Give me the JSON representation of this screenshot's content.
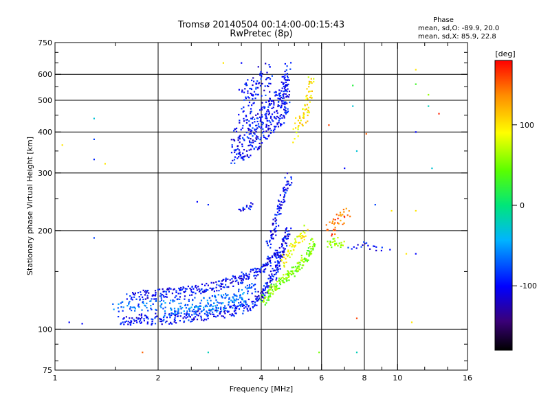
{
  "chart_data": {
    "type": "scatter",
    "title": "Tromsø 20140504 00:14:00-00:15:43",
    "subtitle": "RwPretec (8p)",
    "xlabel": "Frequency [MHz]",
    "ylabel": "Stationary phase Virtual Height [km]",
    "x_scale": "log",
    "y_scale": "log",
    "xlim": [
      1,
      16
    ],
    "ylim": [
      75,
      750
    ],
    "x_ticks": [
      "1",
      "2",
      "4",
      "6",
      "8",
      "10",
      "16"
    ],
    "x_tick_values": [
      1,
      2,
      4,
      6,
      8,
      10,
      16
    ],
    "y_ticks": [
      "75",
      "100",
      "200",
      "300",
      "400",
      "500",
      "600",
      "750"
    ],
    "y_tick_values": [
      75,
      100,
      200,
      300,
      400,
      500,
      600,
      750
    ],
    "grid_x": [
      2,
      4,
      6,
      8,
      10
    ],
    "grid_y": [
      100,
      200,
      300,
      400,
      500,
      600
    ],
    "grid": true,
    "stats": {
      "heading": "Phase",
      "line_o": "mean, sd,O: -89.9, 20.0",
      "line_x": "mean, sd,X:  85.9, 22.8"
    },
    "colorbar": {
      "label": "[deg]",
      "range": [
        -180,
        180
      ],
      "ticks": [
        "100",
        "0",
        "-100"
      ],
      "tick_values": [
        100,
        0,
        -100
      ]
    },
    "traces": [
      {
        "phase": -100,
        "spread_h": 0.04,
        "density": 3,
        "points": [
          [
            1.55,
            106
          ],
          [
            1.8,
            107
          ],
          [
            2.2,
            108
          ],
          [
            2.8,
            111
          ],
          [
            3.3,
            114
          ],
          [
            3.8,
            120
          ],
          [
            4.1,
            130
          ],
          [
            4.4,
            150
          ],
          [
            4.6,
            175
          ],
          [
            4.8,
            200
          ]
        ]
      },
      {
        "phase": -100,
        "spread_h": 0.035,
        "density": 3,
        "points": [
          [
            1.65,
            127
          ],
          [
            2.0,
            128
          ],
          [
            2.5,
            131
          ],
          [
            3.0,
            136
          ],
          [
            3.5,
            143
          ],
          [
            3.9,
            150
          ],
          [
            4.2,
            160
          ],
          [
            4.5,
            175
          ]
        ]
      },
      {
        "phase": -70,
        "spread_h": 0.035,
        "density": 2,
        "points": [
          [
            1.5,
            117
          ],
          [
            1.9,
            118
          ],
          [
            2.4,
            120
          ],
          [
            2.9,
            122
          ],
          [
            3.4,
            127
          ],
          [
            3.9,
            135
          ]
        ]
      },
      {
        "phase": -60,
        "spread_h": 0.03,
        "density": 2,
        "points": [
          [
            2.1,
            112
          ],
          [
            2.6,
            114
          ],
          [
            3.1,
            117
          ],
          [
            3.6,
            122
          ]
        ]
      },
      {
        "phase": -100,
        "spread_h": 0.04,
        "density": 2,
        "points": [
          [
            4.2,
            180
          ],
          [
            4.4,
            210
          ],
          [
            4.55,
            240
          ],
          [
            4.7,
            270
          ],
          [
            4.85,
            290
          ]
        ]
      },
      {
        "phase": 50,
        "spread_h": 0.03,
        "density": 3,
        "points": [
          [
            4.05,
            122
          ],
          [
            4.3,
            132
          ],
          [
            4.6,
            140
          ],
          [
            4.9,
            148
          ],
          [
            5.2,
            158
          ],
          [
            5.5,
            170
          ],
          [
            5.7,
            185
          ]
        ]
      },
      {
        "phase": 90,
        "spread_h": 0.035,
        "density": 2,
        "points": [
          [
            4.6,
            160
          ],
          [
            4.9,
            175
          ],
          [
            5.2,
            190
          ],
          [
            5.4,
            205
          ]
        ]
      },
      {
        "phase": -100,
        "spread_h": 0.14,
        "density": 6,
        "points": [
          [
            3.3,
            360
          ],
          [
            3.6,
            380
          ],
          [
            3.9,
            410
          ],
          [
            4.2,
            440
          ],
          [
            4.5,
            470
          ],
          [
            4.7,
            520
          ],
          [
            4.8,
            580
          ]
        ]
      },
      {
        "phase": -100,
        "spread_h": 0.12,
        "density": 3,
        "points": [
          [
            3.5,
            480
          ],
          [
            3.7,
            520
          ],
          [
            3.9,
            560
          ],
          [
            4.3,
            600
          ]
        ]
      },
      {
        "phase": 100,
        "spread_h": 0.08,
        "density": 2,
        "points": [
          [
            5.0,
            400
          ],
          [
            5.3,
            440
          ],
          [
            5.5,
            500
          ],
          [
            5.6,
            570
          ]
        ]
      },
      {
        "phase": -100,
        "spread_h": 0.02,
        "density": 2,
        "points": [
          [
            3.5,
            232
          ],
          [
            3.8,
            240
          ]
        ]
      },
      {
        "phase": 60,
        "spread_h": 0.03,
        "density": 2,
        "points": [
          [
            6.2,
            180
          ],
          [
            6.6,
            185
          ],
          [
            7.0,
            180
          ]
        ]
      },
      {
        "phase": -100,
        "spread_h": 0.03,
        "density": 1,
        "points": [
          [
            7.3,
            178
          ],
          [
            8.2,
            180
          ],
          [
            9.0,
            178
          ]
        ]
      },
      {
        "phase": 150,
        "spread_h": 0.05,
        "density": 2,
        "points": [
          [
            6.3,
            200
          ],
          [
            6.8,
            215
          ],
          [
            7.2,
            225
          ]
        ]
      }
    ],
    "points": [
      {
        "f": 1.1,
        "h": 105,
        "phase": -100
      },
      {
        "f": 1.2,
        "h": 104,
        "phase": -100
      },
      {
        "f": 1.05,
        "h": 365,
        "phase": 100
      },
      {
        "f": 1.3,
        "h": 440,
        "phase": -30
      },
      {
        "f": 1.3,
        "h": 380,
        "phase": -80
      },
      {
        "f": 1.3,
        "h": 330,
        "phase": -90
      },
      {
        "f": 1.4,
        "h": 320,
        "phase": 100
      },
      {
        "f": 1.3,
        "h": 190,
        "phase": -80
      },
      {
        "f": 1.8,
        "h": 85,
        "phase": 150
      },
      {
        "f": 2.8,
        "h": 85,
        "phase": -20
      },
      {
        "f": 5.9,
        "h": 85,
        "phase": 50
      },
      {
        "f": 7.6,
        "h": 85,
        "phase": -20
      },
      {
        "f": 7.6,
        "h": 108,
        "phase": 160
      },
      {
        "f": 11.0,
        "h": 105,
        "phase": 100
      },
      {
        "f": 2.8,
        "h": 240,
        "phase": -90
      },
      {
        "f": 2.6,
        "h": 245,
        "phase": -100
      },
      {
        "f": 3.1,
        "h": 650,
        "phase": 100
      },
      {
        "f": 3.5,
        "h": 650,
        "phase": -100
      },
      {
        "f": 6.3,
        "h": 420,
        "phase": 160
      },
      {
        "f": 7.0,
        "h": 310,
        "phase": -100
      },
      {
        "f": 7.4,
        "h": 555,
        "phase": 20
      },
      {
        "f": 7.4,
        "h": 480,
        "phase": -30
      },
      {
        "f": 7.6,
        "h": 350,
        "phase": -30
      },
      {
        "f": 8.1,
        "h": 395,
        "phase": 150
      },
      {
        "f": 8.6,
        "h": 240,
        "phase": -80
      },
      {
        "f": 9.6,
        "h": 230,
        "phase": 100
      },
      {
        "f": 11.3,
        "h": 620,
        "phase": 100
      },
      {
        "f": 11.3,
        "h": 560,
        "phase": 30
      },
      {
        "f": 11.3,
        "h": 400,
        "phase": -100
      },
      {
        "f": 11.3,
        "h": 230,
        "phase": 100
      },
      {
        "f": 12.3,
        "h": 520,
        "phase": 60
      },
      {
        "f": 12.3,
        "h": 480,
        "phase": -20
      },
      {
        "f": 12.6,
        "h": 310,
        "phase": -30
      },
      {
        "f": 13.2,
        "h": 455,
        "phase": 170
      },
      {
        "f": 11.3,
        "h": 170,
        "phase": -100
      },
      {
        "f": 10.6,
        "h": 170,
        "phase": 100
      },
      {
        "f": 8.2,
        "h": 180,
        "phase": -100
      },
      {
        "f": 9.5,
        "h": 175,
        "phase": -100
      }
    ]
  }
}
